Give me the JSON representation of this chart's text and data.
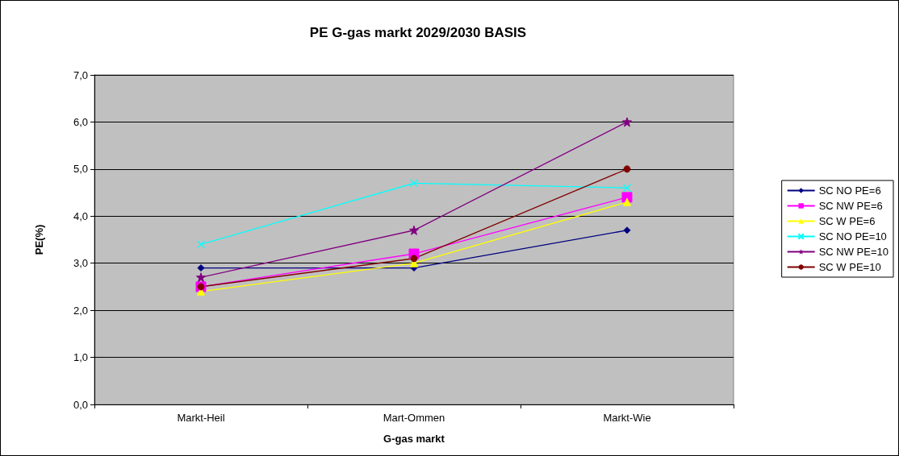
{
  "chart_data": {
    "type": "line",
    "title": "PE G-gas markt 2029/2030 BASIS",
    "xlabel": "G-gas markt",
    "ylabel": "PE(%)",
    "categories": [
      "Markt-Heil",
      "Mart-Ommen",
      "Markt-Wie"
    ],
    "series": [
      {
        "name": "SC NO PE=6",
        "color": "#000080",
        "marker": "diamond",
        "values": [
          2.9,
          2.9,
          3.7
        ]
      },
      {
        "name": "SC NW PE=6",
        "color": "#ff00ff",
        "marker": "square",
        "values": [
          2.5,
          3.2,
          4.4
        ]
      },
      {
        "name": "SC W PE=6",
        "color": "#ffff00",
        "marker": "triangle",
        "values": [
          2.4,
          3.0,
          4.3
        ]
      },
      {
        "name": "SC NO PE=10",
        "color": "#00ffff",
        "marker": "cross",
        "values": [
          3.4,
          4.7,
          4.6
        ]
      },
      {
        "name": "SC NW PE=10",
        "color": "#800080",
        "marker": "star",
        "values": [
          2.7,
          3.7,
          6.0
        ]
      },
      {
        "name": "SC W PE=10",
        "color": "#800000",
        "marker": "circle",
        "values": [
          2.5,
          3.1,
          5.0
        ]
      }
    ],
    "ylim": [
      0,
      7
    ],
    "yticks": [
      {
        "value": 0,
        "label": "0,0"
      },
      {
        "value": 1,
        "label": "1,0"
      },
      {
        "value": 2,
        "label": "2,0"
      },
      {
        "value": 3,
        "label": "3,0"
      },
      {
        "value": 4,
        "label": "4,0"
      },
      {
        "value": 5,
        "label": "5,0"
      },
      {
        "value": 6,
        "label": "6,0"
      },
      {
        "value": 7,
        "label": "7,0"
      }
    ],
    "grid": "y",
    "legend": "right",
    "line_style": "solid"
  }
}
